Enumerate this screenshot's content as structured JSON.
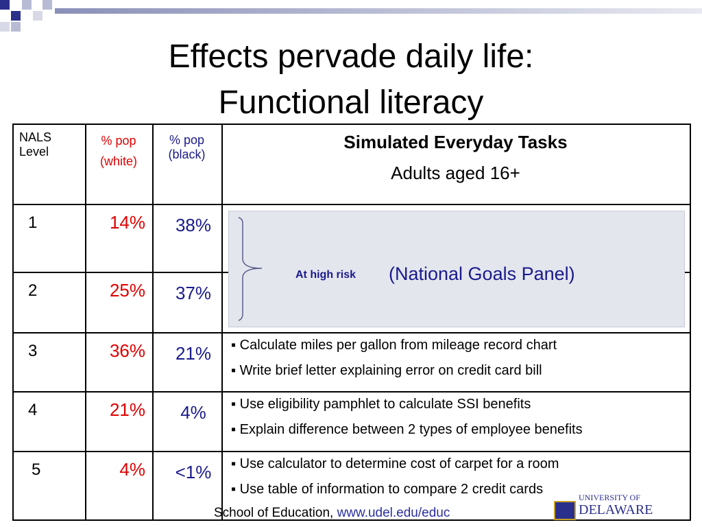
{
  "header": {
    "title_lines": [
      "Effects pervade daily life:",
      "Functional literacy"
    ]
  },
  "table": {
    "headers": {
      "level": [
        "NALS",
        "Level"
      ],
      "white": [
        "% pop",
        "(white)"
      ],
      "black": [
        "% pop",
        "(black)"
      ],
      "tasks": [
        "Simulated Everyday Tasks",
        "Adults aged 16+"
      ]
    },
    "rows": [
      {
        "level": "1",
        "white": "14%",
        "black": "38%"
      },
      {
        "level": "2",
        "white": "25%",
        "black": "37%"
      },
      {
        "level": "3",
        "white": "36%",
        "black": "21%",
        "tasks": [
          "Calculate miles per gallon from mileage record chart",
          "Write brief letter explaining error on credit card bill"
        ]
      },
      {
        "level": "4",
        "white": "21%",
        "black": "4%",
        "tasks": [
          "Use eligibility pamphlet to calculate SSI benefits",
          "Explain difference between 2 types of employee benefits"
        ]
      },
      {
        "level": "5",
        "white": "4%",
        "black": "<1%",
        "tasks": [
          "Use calculator to determine cost of carpet for a room",
          "Use table of information to compare 2 credit cards"
        ]
      }
    ]
  },
  "overlay": {
    "label": "At high risk",
    "note": "(National Goals Panel)"
  },
  "footer": {
    "text": "School of Education,",
    "link": "www.udel.edu/educ"
  },
  "logo": {
    "line1": "UNIVERSITY OF",
    "line2": "DELAWARE"
  }
}
